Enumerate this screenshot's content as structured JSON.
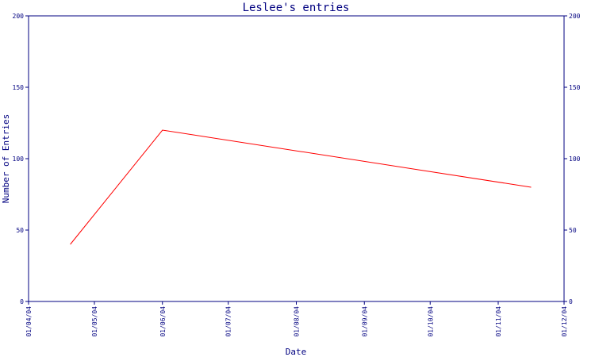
{
  "chart_data": {
    "type": "line",
    "title": "Leslee's entries",
    "xlabel": "Date",
    "ylabel": "Number of Entries",
    "x_ticks": [
      "01/04/04",
      "01/05/04",
      "01/06/04",
      "01/07/04",
      "01/08/04",
      "01/09/04",
      "01/10/04",
      "01/11/04",
      "01/12/04"
    ],
    "ylim": [
      0,
      200
    ],
    "y_ticks": [
      "0",
      "50",
      "100",
      "150",
      "200"
    ],
    "right_axis_ticks": true,
    "grid": false,
    "series": [
      {
        "color": "#ff0000",
        "points": [
          {
            "x": "2004-04-20",
            "y": 40
          },
          {
            "x": "2004-06-01",
            "y": 120
          },
          {
            "x": "2004-11-16",
            "y": 80
          }
        ]
      }
    ],
    "colors": {
      "axis": "#000080",
      "background": "#ffffff"
    }
  }
}
